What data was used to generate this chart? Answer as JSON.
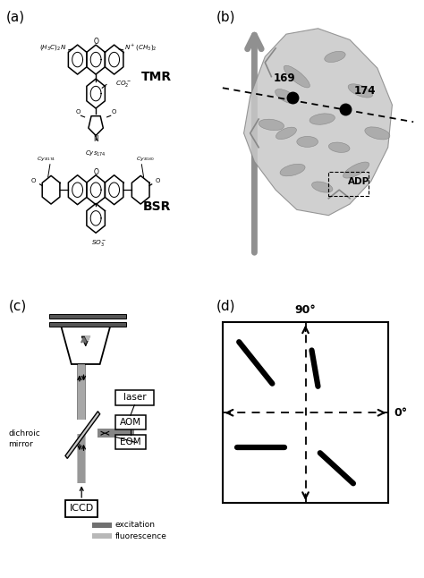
{
  "bg_color": "#ffffff",
  "panel_labels": [
    "(a)",
    "(b)",
    "(c)",
    "(d)"
  ],
  "panel_label_fontsize": 11,
  "tmr_label": "TMR",
  "bsr_label": "BSR",
  "label_169": "169",
  "label_174": "174",
  "label_adp": "ADP",
  "excitation_color": "#707070",
  "fluorescence_color": "#b8b8b8",
  "excitation_label": "excitation",
  "fluorescence_label": "fluorescence",
  "dichroic_label": "dichroic\nmirror",
  "deg90_label": "90°",
  "deg0_label": "0°",
  "gray_arrow": "#909090",
  "protein_gray": "#c8c8c8",
  "protein_dark": "#a0a0a0"
}
